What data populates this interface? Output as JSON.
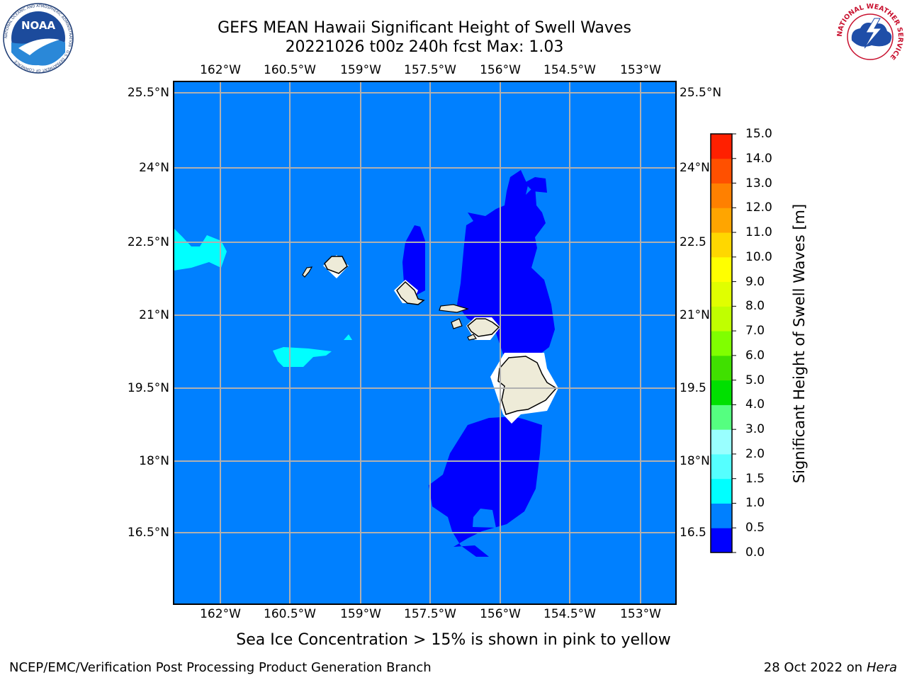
{
  "title": {
    "line1": "GEFS MEAN Hawaii Significant Height of Swell Waves",
    "line2": "20221026 t00z 240h fcst   Max: 1.03"
  },
  "map": {
    "lon_ticks": [
      "162°W",
      "160.5°W",
      "159°W",
      "157.5°W",
      "156°W",
      "154.5°W",
      "153°W"
    ],
    "lat_ticks": [
      "25.5°N",
      "24°N",
      "22.5°N",
      "21°N",
      "19.5°N",
      "18°N",
      "16.5°N"
    ],
    "lat_ticks_right": [
      "25.5°N",
      "24°N",
      "22.5",
      "21°N",
      "19.5",
      "18°N",
      "16.5"
    ],
    "colors": {
      "ocean_fill": "#0080ff",
      "low_swell_fill": "#0000ff",
      "cyan_fill": "#00ffff",
      "land": "#eeebd8",
      "grid": "#b0b0b0"
    }
  },
  "colorbar": {
    "label": "Significant Height of Swell Waves [m]",
    "levels": [
      "0.0",
      "0.5",
      "1.0",
      "1.5",
      "2.0",
      "3.0",
      "4.0",
      "5.0",
      "6.0",
      "7.0",
      "8.0",
      "9.0",
      "10.0",
      "11.0",
      "12.0",
      "13.0",
      "14.0",
      "15.0"
    ],
    "colors": [
      "#0000ff",
      "#0080ff",
      "#00ffff",
      "#55ffff",
      "#99ffff",
      "#55ff80",
      "#00e000",
      "#40e000",
      "#80ff00",
      "#c0ff00",
      "#e0ff00",
      "#ffff00",
      "#ffd700",
      "#ffa500",
      "#ff8000",
      "#ff5000",
      "#ff2000"
    ]
  },
  "logos": {
    "noaa_text": "NOAA",
    "noaa_ring_text": "NATIONAL OCEANIC AND ATMOSPHERIC ADMINISTRATION · U.S. DEPARTMENT OF COMMERCE",
    "nws_ring_text": "NATIONAL WEATHER SERVICE"
  },
  "caption": "Sea Ice Concentration > 15% is shown in pink to yellow",
  "footer": {
    "left": "NCEP/EMC/Verification Post Processing Product Generation Branch",
    "right_date": "28 Oct 2022 on",
    "right_host": "Hera"
  }
}
